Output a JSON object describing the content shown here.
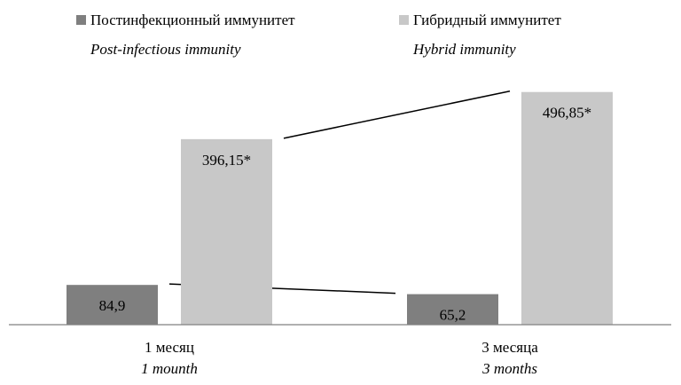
{
  "colors": {
    "post_infectious": "#7f7f7f",
    "hybrid": "#c8c8c8",
    "axis": "#808080",
    "connector": "#000000",
    "background": "#ffffff"
  },
  "chart_data": {
    "type": "bar",
    "title": "",
    "xlabel": "",
    "ylabel": "",
    "ylim": [
      0,
      520
    ],
    "grid": false,
    "legend_position": "top",
    "categories": [
      {
        "label": "1 месяц",
        "label_en": "1 mounth"
      },
      {
        "label": "3 месяца",
        "label_en": "3 months"
      }
    ],
    "series": [
      {
        "name": "Постинфекционный иммунитет",
        "name_en": "Post-infectious immunity",
        "values": [
          84.9,
          65.2
        ],
        "value_labels": [
          "84,9",
          "65,2"
        ]
      },
      {
        "name": "Гибридный иммунитет",
        "name_en": "Hybrid immunity",
        "values": [
          396.15,
          496.85
        ],
        "value_labels": [
          "396,15*",
          "496,85*"
        ]
      }
    ],
    "connectors": "trend lines join the bar tops of each series across time points"
  }
}
